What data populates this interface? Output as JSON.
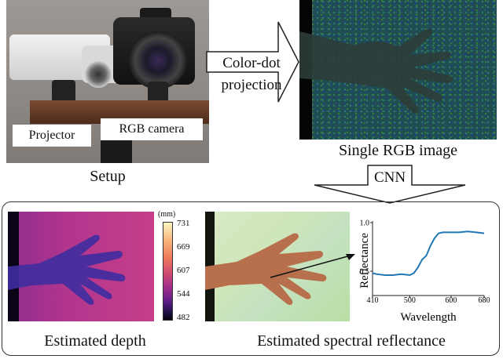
{
  "setup": {
    "projector_label": "Projector",
    "camera_label": "RGB camera",
    "caption": "Setup"
  },
  "projection_arrow": {
    "line1": "Color-dot",
    "line2": "projection"
  },
  "rgb_image": {
    "caption": "Single RGB image"
  },
  "cnn_arrow": {
    "label": "CNN"
  },
  "depth": {
    "caption": "Estimated depth",
    "colorbar_unit": "(mm)",
    "colorbar_ticks": [
      "731",
      "669",
      "607",
      "544",
      "482"
    ]
  },
  "reflectance": {
    "caption": "Estimated spectral reflectance"
  },
  "chart_data": {
    "type": "line",
    "title": "",
    "xlabel": "Wavelength",
    "ylabel": "Reflectance",
    "xlim": [
      410,
      680
    ],
    "ylim": [
      0.25,
      1.0
    ],
    "xticks": [
      "410",
      "500",
      "600",
      "680"
    ],
    "yticks": [
      "0.5",
      "1.0"
    ],
    "line_color": "#1f77b4",
    "series": [
      {
        "name": "",
        "x": [
          410,
          420,
          440,
          460,
          480,
          500,
          510,
          520,
          530,
          540,
          550,
          560,
          570,
          580,
          600,
          620,
          640,
          660,
          680
        ],
        "y": [
          0.48,
          0.47,
          0.46,
          0.46,
          0.47,
          0.46,
          0.48,
          0.54,
          0.62,
          0.66,
          0.76,
          0.84,
          0.89,
          0.9,
          0.9,
          0.9,
          0.91,
          0.9,
          0.89
        ]
      }
    ]
  }
}
